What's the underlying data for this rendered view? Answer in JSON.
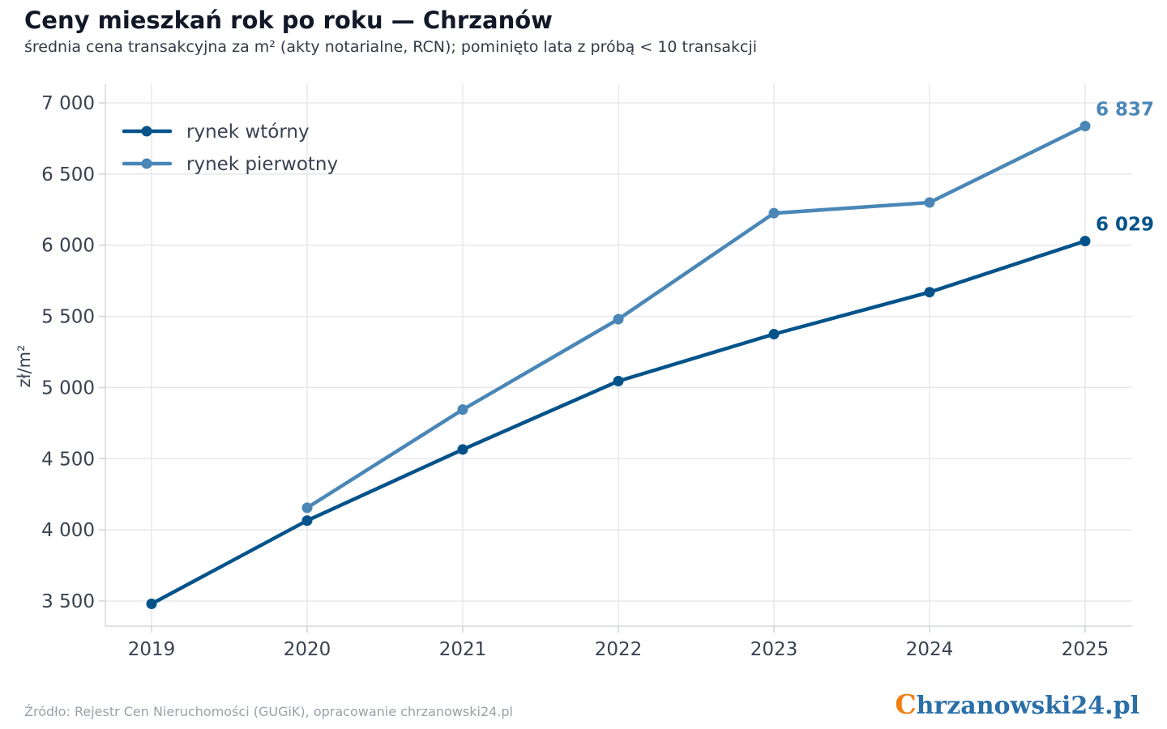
{
  "header": {
    "title": "Ceny mieszkań rok po roku — Chrzanów",
    "subtitle": "średnia cena transakcyjna za m² (akty notarialne, RCN); pominięto lata z próbą < 10 transakcji"
  },
  "footer": {
    "source": "Źródło: Rejestr Cen Nieruchomości (GUGiK), opracowanie chrzanowski24.pl"
  },
  "logo": {
    "first_letter": "C",
    "rest": "hrzanowski24.pl",
    "colors": {
      "first_letter": "#f07f12",
      "rest": "#2a6fa8"
    }
  },
  "chart_data": {
    "type": "line",
    "title": "Ceny mieszkań rok po roku — Chrzanów",
    "subtitle": "średnia cena transakcyjna za m² (akty notarialne, RCN); pominięto lata z próbą < 10 transakcji",
    "xlabel": "",
    "ylabel": "zł/m²",
    "x": [
      2019,
      2020,
      2021,
      2022,
      2023,
      2024,
      2025
    ],
    "ylim": [
      3320,
      7000
    ],
    "yticks": [
      3500,
      4000,
      4500,
      5000,
      5500,
      6000,
      6500,
      7000
    ],
    "ytick_labels": [
      "3 500",
      "4 000",
      "4 500",
      "5 000",
      "5 500",
      "6 000",
      "6 500",
      "7 000"
    ],
    "grid": true,
    "legend_position": "top-left",
    "series": [
      {
        "name": "rynek wtórny",
        "color": "#03538a",
        "values": [
          3480,
          4065,
          4565,
          5045,
          5375,
          5670,
          6029
        ],
        "end_label": "6 029"
      },
      {
        "name": "rynek pierwotny",
        "color": "#4a87b7",
        "values": [
          null,
          4155,
          4845,
          5480,
          6225,
          6300,
          6837
        ],
        "end_label": "6 837"
      }
    ]
  }
}
